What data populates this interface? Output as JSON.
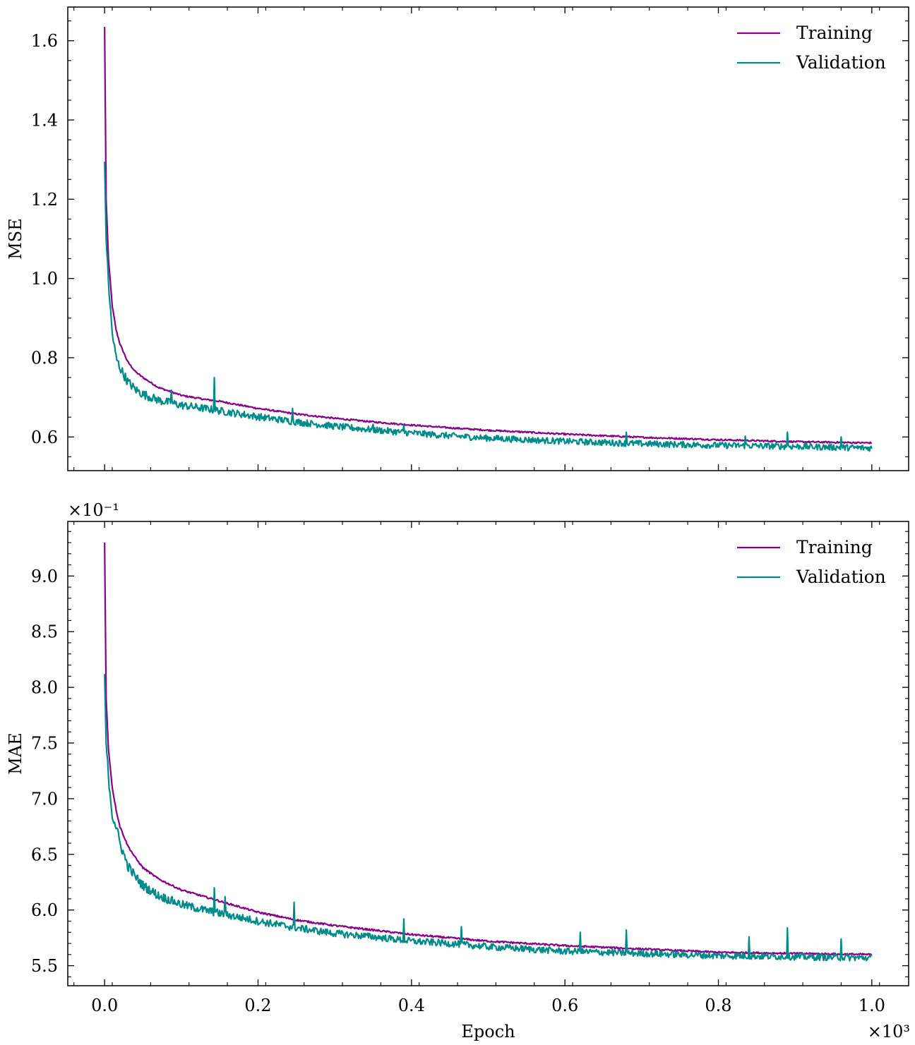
{
  "chart_data": [
    {
      "type": "line",
      "panel": "top",
      "ylabel": "MSE",
      "xlabel": "",
      "xlim": [
        -0.048,
        1.048
      ],
      "ylim": [
        0.515,
        1.685
      ],
      "xticks": [
        0.0,
        0.2,
        0.4,
        0.6,
        0.8,
        1.0
      ],
      "xtick_labels": [
        "",
        "",
        "",
        "",
        "",
        ""
      ],
      "yticks": [
        0.6,
        0.8,
        1.0,
        1.2,
        1.4,
        1.6
      ],
      "ytick_labels": [
        "0.6",
        "0.8",
        "1.0",
        "1.2",
        "1.4",
        "1.6"
      ],
      "y_multiplier": "",
      "legend": {
        "position": "top-right",
        "entries": [
          "Training",
          "Validation"
        ]
      },
      "series": [
        {
          "name": "Training",
          "color": "#8b008b",
          "x": [
            0,
            0.002,
            0.005,
            0.01,
            0.015,
            0.02,
            0.03,
            0.04,
            0.05,
            0.07,
            0.1,
            0.13,
            0.15,
            0.2,
            0.25,
            0.3,
            0.35,
            0.4,
            0.45,
            0.5,
            0.6,
            0.7,
            0.8,
            0.9,
            1.0
          ],
          "y": [
            1.635,
            1.2,
            1.05,
            0.93,
            0.87,
            0.835,
            0.79,
            0.765,
            0.75,
            0.725,
            0.705,
            0.695,
            0.69,
            0.672,
            0.658,
            0.647,
            0.638,
            0.63,
            0.623,
            0.617,
            0.607,
            0.599,
            0.593,
            0.588,
            0.585
          ],
          "noise": 0.002
        },
        {
          "name": "Validation",
          "color": "#008b8b",
          "x": [
            0,
            0.002,
            0.005,
            0.01,
            0.015,
            0.02,
            0.03,
            0.04,
            0.05,
            0.07,
            0.1,
            0.13,
            0.15,
            0.2,
            0.25,
            0.3,
            0.35,
            0.4,
            0.45,
            0.5,
            0.6,
            0.7,
            0.8,
            0.9,
            1.0
          ],
          "y": [
            1.295,
            1.1,
            0.99,
            0.86,
            0.8,
            0.775,
            0.74,
            0.72,
            0.708,
            0.693,
            0.68,
            0.672,
            0.666,
            0.651,
            0.638,
            0.627,
            0.618,
            0.61,
            0.603,
            0.597,
            0.589,
            0.583,
            0.579,
            0.576,
            0.572
          ],
          "noise": 0.008,
          "spikes": [
            [
              0.143,
              0.75
            ],
            [
              0.245,
              0.672
            ],
            [
              0.087,
              0.718
            ],
            [
              0.35,
              0.632
            ],
            [
              0.39,
              0.63
            ],
            [
              0.68,
              0.612
            ],
            [
              0.89,
              0.612
            ],
            [
              0.835,
              0.602
            ],
            [
              0.96,
              0.6
            ]
          ]
        }
      ]
    },
    {
      "type": "line",
      "panel": "bottom",
      "ylabel": "MAE",
      "xlabel": "Epoch",
      "xlim": [
        -0.048,
        1.048
      ],
      "ylim": [
        5.32,
        9.49
      ],
      "xticks": [
        0.0,
        0.2,
        0.4,
        0.6,
        0.8,
        1.0
      ],
      "xtick_labels": [
        "0.0",
        "0.2",
        "0.4",
        "0.6",
        "0.8",
        "1.0"
      ],
      "x_multiplier": "×10³",
      "yticks": [
        5.5,
        6.0,
        6.5,
        7.0,
        7.5,
        8.0,
        8.5,
        9.0
      ],
      "ytick_labels": [
        "5.5",
        "6.0",
        "6.5",
        "7.0",
        "7.5",
        "8.0",
        "8.5",
        "9.0"
      ],
      "y_multiplier": "×10⁻¹",
      "legend": {
        "position": "top-right",
        "entries": [
          "Training",
          "Validation"
        ]
      },
      "series": [
        {
          "name": "Training",
          "color": "#8b008b",
          "x": [
            0,
            0.002,
            0.005,
            0.01,
            0.015,
            0.02,
            0.03,
            0.04,
            0.05,
            0.07,
            0.1,
            0.13,
            0.15,
            0.2,
            0.25,
            0.3,
            0.35,
            0.4,
            0.45,
            0.5,
            0.6,
            0.7,
            0.8,
            0.9,
            1.0
          ],
          "y": [
            9.3,
            7.9,
            7.45,
            7.1,
            6.9,
            6.75,
            6.58,
            6.47,
            6.38,
            6.28,
            6.18,
            6.12,
            6.08,
            5.98,
            5.91,
            5.86,
            5.82,
            5.78,
            5.75,
            5.72,
            5.68,
            5.65,
            5.62,
            5.61,
            5.6
          ],
          "noise": 0.008
        },
        {
          "name": "Validation",
          "color": "#008b8b",
          "x": [
            0,
            0.002,
            0.005,
            0.01,
            0.015,
            0.02,
            0.03,
            0.04,
            0.05,
            0.07,
            0.1,
            0.13,
            0.15,
            0.2,
            0.25,
            0.3,
            0.35,
            0.4,
            0.45,
            0.5,
            0.6,
            0.7,
            0.8,
            0.9,
            1.0
          ],
          "y": [
            8.12,
            7.5,
            7.2,
            6.85,
            6.75,
            6.6,
            6.4,
            6.3,
            6.22,
            6.13,
            6.05,
            6.0,
            5.97,
            5.9,
            5.84,
            5.79,
            5.76,
            5.72,
            5.7,
            5.67,
            5.63,
            5.61,
            5.59,
            5.58,
            5.57
          ],
          "noise": 0.03,
          "spikes": [
            [
              0.143,
              6.2
            ],
            [
              0.157,
              6.12
            ],
            [
              0.247,
              6.07
            ],
            [
              0.39,
              5.92
            ],
            [
              0.465,
              5.85
            ],
            [
              0.62,
              5.8
            ],
            [
              0.68,
              5.82
            ],
            [
              0.89,
              5.84
            ],
            [
              0.96,
              5.74
            ],
            [
              0.84,
              5.76
            ]
          ]
        }
      ]
    }
  ]
}
